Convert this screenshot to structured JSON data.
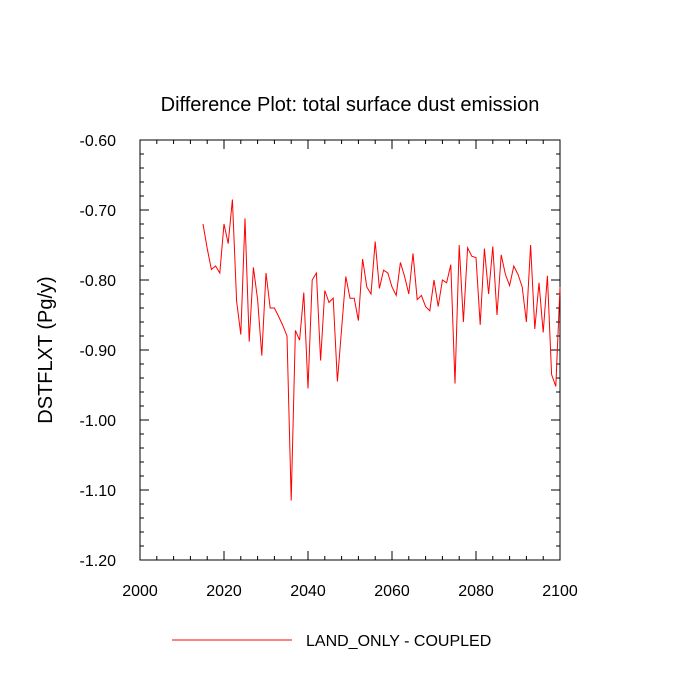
{
  "chart_data": {
    "type": "line",
    "title": "Difference Plot: total surface dust emission",
    "xlabel": "",
    "ylabel": "DSTFLXT  (Pg/y)",
    "xlim": [
      2000,
      2100
    ],
    "ylim": [
      -1.2,
      -0.6
    ],
    "x_ticks": [
      2000,
      2020,
      2040,
      2060,
      2080,
      2100
    ],
    "x_tick_labels": [
      "2000",
      "2020",
      "2040",
      "2060",
      "2080",
      "2100"
    ],
    "y_ticks": [
      -0.6,
      -0.7,
      -0.8,
      -0.9,
      -1.0,
      -1.1,
      -1.2
    ],
    "y_tick_labels": [
      "-0.60",
      "-0.70",
      "-0.80",
      "-0.90",
      "-1.00",
      "-1.10",
      "-1.20"
    ],
    "grid": false,
    "legend_position": "bottom",
    "series": [
      {
        "name": "LAND_ONLY - COUPLED",
        "color": "#ff0000",
        "x": [
          2015,
          2016,
          2017,
          2018,
          2019,
          2020,
          2021,
          2022,
          2023,
          2024,
          2025,
          2026,
          2027,
          2028,
          2029,
          2030,
          2031,
          2032,
          2033,
          2034,
          2035,
          2036,
          2037,
          2038,
          2039,
          2040,
          2041,
          2042,
          2043,
          2044,
          2045,
          2046,
          2047,
          2048,
          2049,
          2050,
          2051,
          2052,
          2053,
          2054,
          2055,
          2056,
          2057,
          2058,
          2059,
          2060,
          2061,
          2062,
          2063,
          2064,
          2065,
          2066,
          2067,
          2068,
          2069,
          2070,
          2071,
          2072,
          2073,
          2074,
          2075,
          2076,
          2077,
          2078,
          2079,
          2080,
          2081,
          2082,
          2083,
          2084,
          2085,
          2086,
          2087,
          2088,
          2089,
          2090,
          2091,
          2092,
          2093,
          2094,
          2095,
          2096,
          2097,
          2098,
          2099,
          2100
        ],
        "y": [
          -0.72,
          -0.755,
          -0.785,
          -0.78,
          -0.79,
          -0.72,
          -0.748,
          -0.685,
          -0.83,
          -0.878,
          -0.712,
          -0.888,
          -0.782,
          -0.828,
          -0.908,
          -0.79,
          -0.84,
          -0.84,
          -0.852,
          -0.865,
          -0.88,
          -1.115,
          -0.872,
          -0.886,
          -0.818,
          -0.955,
          -0.8,
          -0.79,
          -0.915,
          -0.815,
          -0.832,
          -0.826,
          -0.945,
          -0.87,
          -0.795,
          -0.826,
          -0.826,
          -0.858,
          -0.77,
          -0.81,
          -0.82,
          -0.745,
          -0.812,
          -0.786,
          -0.79,
          -0.81,
          -0.822,
          -0.775,
          -0.795,
          -0.82,
          -0.762,
          -0.828,
          -0.822,
          -0.838,
          -0.844,
          -0.8,
          -0.838,
          -0.8,
          -0.804,
          -0.778,
          -0.948,
          -0.75,
          -0.86,
          -0.754,
          -0.766,
          -0.768,
          -0.864,
          -0.755,
          -0.82,
          -0.752,
          -0.85,
          -0.764,
          -0.792,
          -0.808,
          -0.78,
          -0.792,
          -0.81,
          -0.86,
          -0.75,
          -0.87,
          -0.804,
          -0.875,
          -0.794,
          -0.935,
          -0.952,
          -0.81
        ]
      }
    ]
  }
}
